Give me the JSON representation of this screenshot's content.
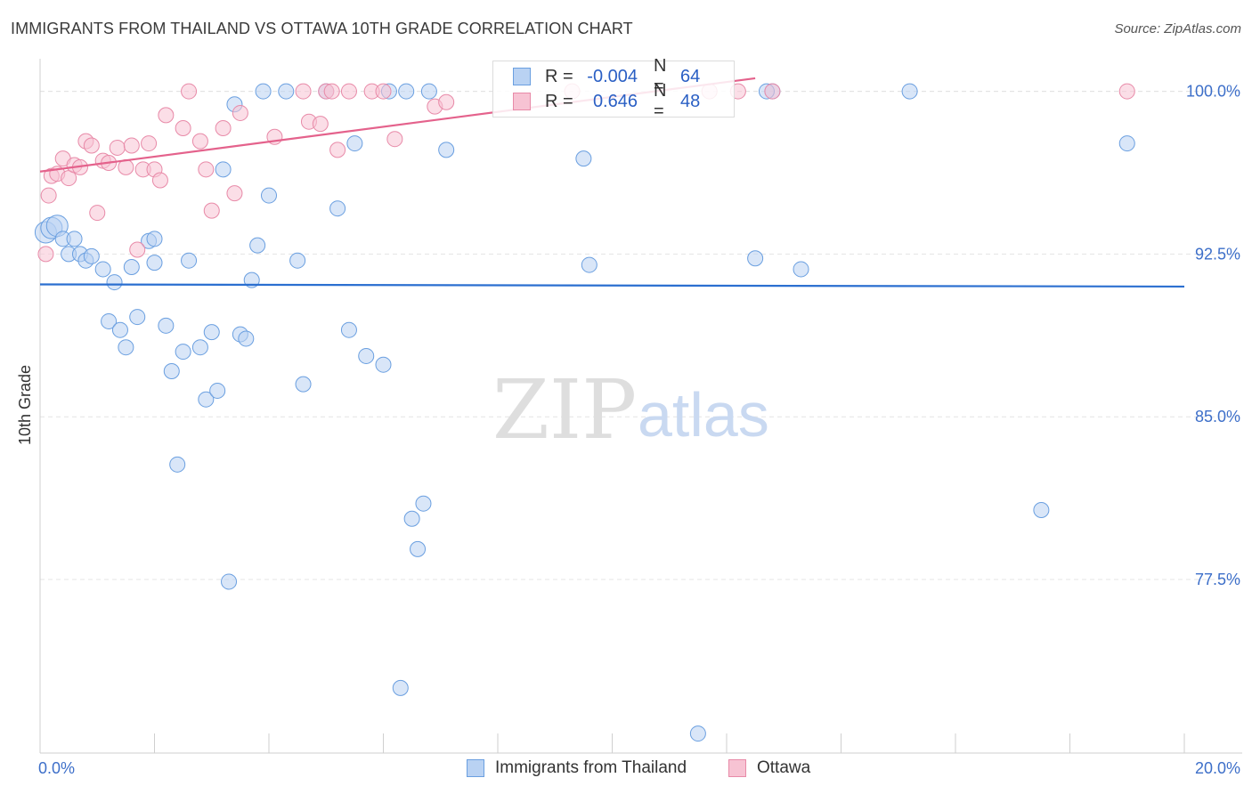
{
  "title": "IMMIGRANTS FROM THAILAND VS OTTAWA 10TH GRADE CORRELATION CHART",
  "source": "Source: ZipAtlas.com",
  "watermark": {
    "zip": "ZIP",
    "atlas": "atlas"
  },
  "colors": {
    "blue": "#6a9fe0",
    "blue_fill": "#b9d2f3",
    "blue_line": "#2b6fd0",
    "pink": "#e88aa8",
    "pink_fill": "#f7c3d3",
    "pink_line": "#e4628c",
    "axis_text": "#3d6fc9",
    "grid": "#e4e4e4"
  },
  "legend": {
    "r_label": "R =",
    "n_label": "N =",
    "series1": {
      "r": "-0.004",
      "n": "64"
    },
    "series2": {
      "r": "0.646",
      "n": "48"
    }
  },
  "chart_data": {
    "type": "scatter",
    "title": "IMMIGRANTS FROM THAILAND VS OTTAWA 10TH GRADE CORRELATION CHART",
    "xlabel": "",
    "ylabel": "10th Grade",
    "xlim": [
      0,
      20
    ],
    "ylim": [
      69.5,
      101.5
    ],
    "x_tick_labels": [
      "0.0%",
      "20.0%"
    ],
    "y_ticks": [
      100.0,
      92.5,
      85.0,
      77.5
    ],
    "y_tick_labels": [
      "100.0%",
      "92.5%",
      "85.0%",
      "77.5%"
    ],
    "grid": true,
    "series": [
      {
        "name": "Immigrants from Thailand",
        "color": "#6a9fe0",
        "trend": {
          "x": [
            0,
            20
          ],
          "y": [
            91.1,
            91.0
          ]
        },
        "points": [
          [
            0.1,
            93.5
          ],
          [
            0.2,
            93.7
          ],
          [
            0.3,
            93.8
          ],
          [
            0.4,
            93.2
          ],
          [
            0.5,
            92.5
          ],
          [
            0.6,
            93.2
          ],
          [
            0.7,
            92.5
          ],
          [
            0.8,
            92.2
          ],
          [
            0.9,
            92.4
          ],
          [
            1.1,
            91.8
          ],
          [
            1.3,
            91.2
          ],
          [
            1.2,
            89.4
          ],
          [
            1.4,
            89.0
          ],
          [
            1.5,
            88.2
          ],
          [
            1.6,
            91.9
          ],
          [
            1.7,
            89.6
          ],
          [
            1.9,
            93.1
          ],
          [
            2.0,
            93.2
          ],
          [
            2.0,
            92.1
          ],
          [
            2.2,
            89.2
          ],
          [
            2.3,
            87.1
          ],
          [
            2.4,
            82.8
          ],
          [
            2.5,
            88.0
          ],
          [
            2.6,
            92.2
          ],
          [
            2.8,
            88.2
          ],
          [
            2.9,
            85.8
          ],
          [
            3.0,
            88.9
          ],
          [
            3.1,
            86.2
          ],
          [
            3.2,
            96.4
          ],
          [
            3.3,
            77.4
          ],
          [
            3.4,
            99.4
          ],
          [
            3.5,
            88.8
          ],
          [
            3.6,
            88.6
          ],
          [
            3.7,
            91.3
          ],
          [
            3.8,
            92.9
          ],
          [
            3.9,
            100.0
          ],
          [
            4.0,
            95.2
          ],
          [
            4.3,
            100.0
          ],
          [
            4.5,
            92.2
          ],
          [
            4.6,
            86.5
          ],
          [
            5.0,
            100.0
          ],
          [
            5.2,
            94.6
          ],
          [
            5.4,
            89.0
          ],
          [
            5.5,
            97.6
          ],
          [
            5.7,
            87.8
          ],
          [
            6.0,
            87.4
          ],
          [
            6.1,
            100.0
          ],
          [
            6.3,
            72.5
          ],
          [
            6.4,
            100.0
          ],
          [
            6.5,
            80.3
          ],
          [
            6.6,
            78.9
          ],
          [
            6.7,
            81.0
          ],
          [
            6.8,
            100.0
          ],
          [
            7.1,
            97.3
          ],
          [
            9.5,
            96.9
          ],
          [
            9.6,
            92.0
          ],
          [
            11.5,
            70.4
          ],
          [
            12.5,
            92.3
          ],
          [
            12.8,
            100.0
          ],
          [
            13.3,
            91.8
          ],
          [
            15.2,
            100.0
          ],
          [
            17.5,
            80.7
          ],
          [
            19.0,
            97.6
          ],
          [
            12.7,
            100.0
          ]
        ]
      },
      {
        "name": "Ottawa",
        "color": "#e88aa8",
        "trend": {
          "x": [
            0,
            12.5
          ],
          "y": [
            96.3,
            100.6
          ]
        },
        "points": [
          [
            0.1,
            92.5
          ],
          [
            0.15,
            95.2
          ],
          [
            0.2,
            96.1
          ],
          [
            0.3,
            96.2
          ],
          [
            0.4,
            96.9
          ],
          [
            0.5,
            96.0
          ],
          [
            0.6,
            96.6
          ],
          [
            0.7,
            96.5
          ],
          [
            0.8,
            97.7
          ],
          [
            0.9,
            97.5
          ],
          [
            1.0,
            94.4
          ],
          [
            1.1,
            96.8
          ],
          [
            1.2,
            96.7
          ],
          [
            1.35,
            97.4
          ],
          [
            1.5,
            96.5
          ],
          [
            1.6,
            97.5
          ],
          [
            1.7,
            92.7
          ],
          [
            1.8,
            96.4
          ],
          [
            1.9,
            97.6
          ],
          [
            2.0,
            96.4
          ],
          [
            2.1,
            95.9
          ],
          [
            2.2,
            98.9
          ],
          [
            2.5,
            98.3
          ],
          [
            2.6,
            100.0
          ],
          [
            2.8,
            97.7
          ],
          [
            2.9,
            96.4
          ],
          [
            3.0,
            94.5
          ],
          [
            3.2,
            98.3
          ],
          [
            3.4,
            95.3
          ],
          [
            3.5,
            99.0
          ],
          [
            4.1,
            97.9
          ],
          [
            4.6,
            100.0
          ],
          [
            4.7,
            98.6
          ],
          [
            4.9,
            98.5
          ],
          [
            5.0,
            100.0
          ],
          [
            5.1,
            100.0
          ],
          [
            5.2,
            97.3
          ],
          [
            5.4,
            100.0
          ],
          [
            5.8,
            100.0
          ],
          [
            6.0,
            100.0
          ],
          [
            6.2,
            97.8
          ],
          [
            6.9,
            99.3
          ],
          [
            7.1,
            99.5
          ],
          [
            9.3,
            100.0
          ],
          [
            11.7,
            100.0
          ],
          [
            12.2,
            100.0
          ],
          [
            12.8,
            100.0
          ],
          [
            19.0,
            100.0
          ]
        ]
      }
    ]
  },
  "bottom_legend": {
    "series1": "Immigrants from Thailand",
    "series2": "Ottawa"
  }
}
